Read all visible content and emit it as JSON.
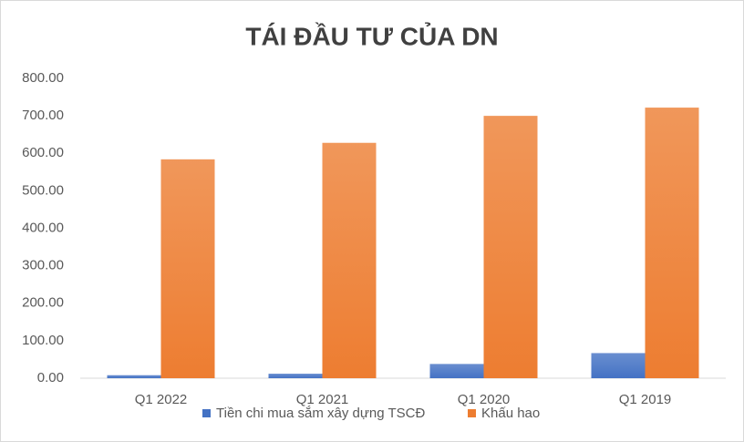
{
  "chart_data": {
    "type": "bar",
    "title": "TÁI ĐẦU TƯ CỦA DN",
    "categories": [
      "Q1 2022",
      "Q1 2021",
      "Q1 2020",
      "Q1 2019"
    ],
    "series": [
      {
        "name": "Tiền chi mua sắm xây dựng TSCĐ",
        "color": "#4472c4",
        "values": [
          8,
          12,
          38,
          67
        ]
      },
      {
        "name": "Khấu hao",
        "color": "#ed7d31",
        "values": [
          584,
          628,
          700,
          722
        ]
      }
    ],
    "ylim": [
      0,
      800
    ],
    "yticks": [
      {
        "value": 0,
        "label": "0.00"
      },
      {
        "value": 100,
        "label": "100.00"
      },
      {
        "value": 200,
        "label": "200.00"
      },
      {
        "value": 300,
        "label": "300.00"
      },
      {
        "value": 400,
        "label": "400.00"
      },
      {
        "value": 500,
        "label": "500.00"
      },
      {
        "value": 600,
        "label": "600.00"
      },
      {
        "value": 700,
        "label": "700.00"
      },
      {
        "value": 800,
        "label": "800.00"
      }
    ],
    "grid": false,
    "legend": "bottom"
  }
}
